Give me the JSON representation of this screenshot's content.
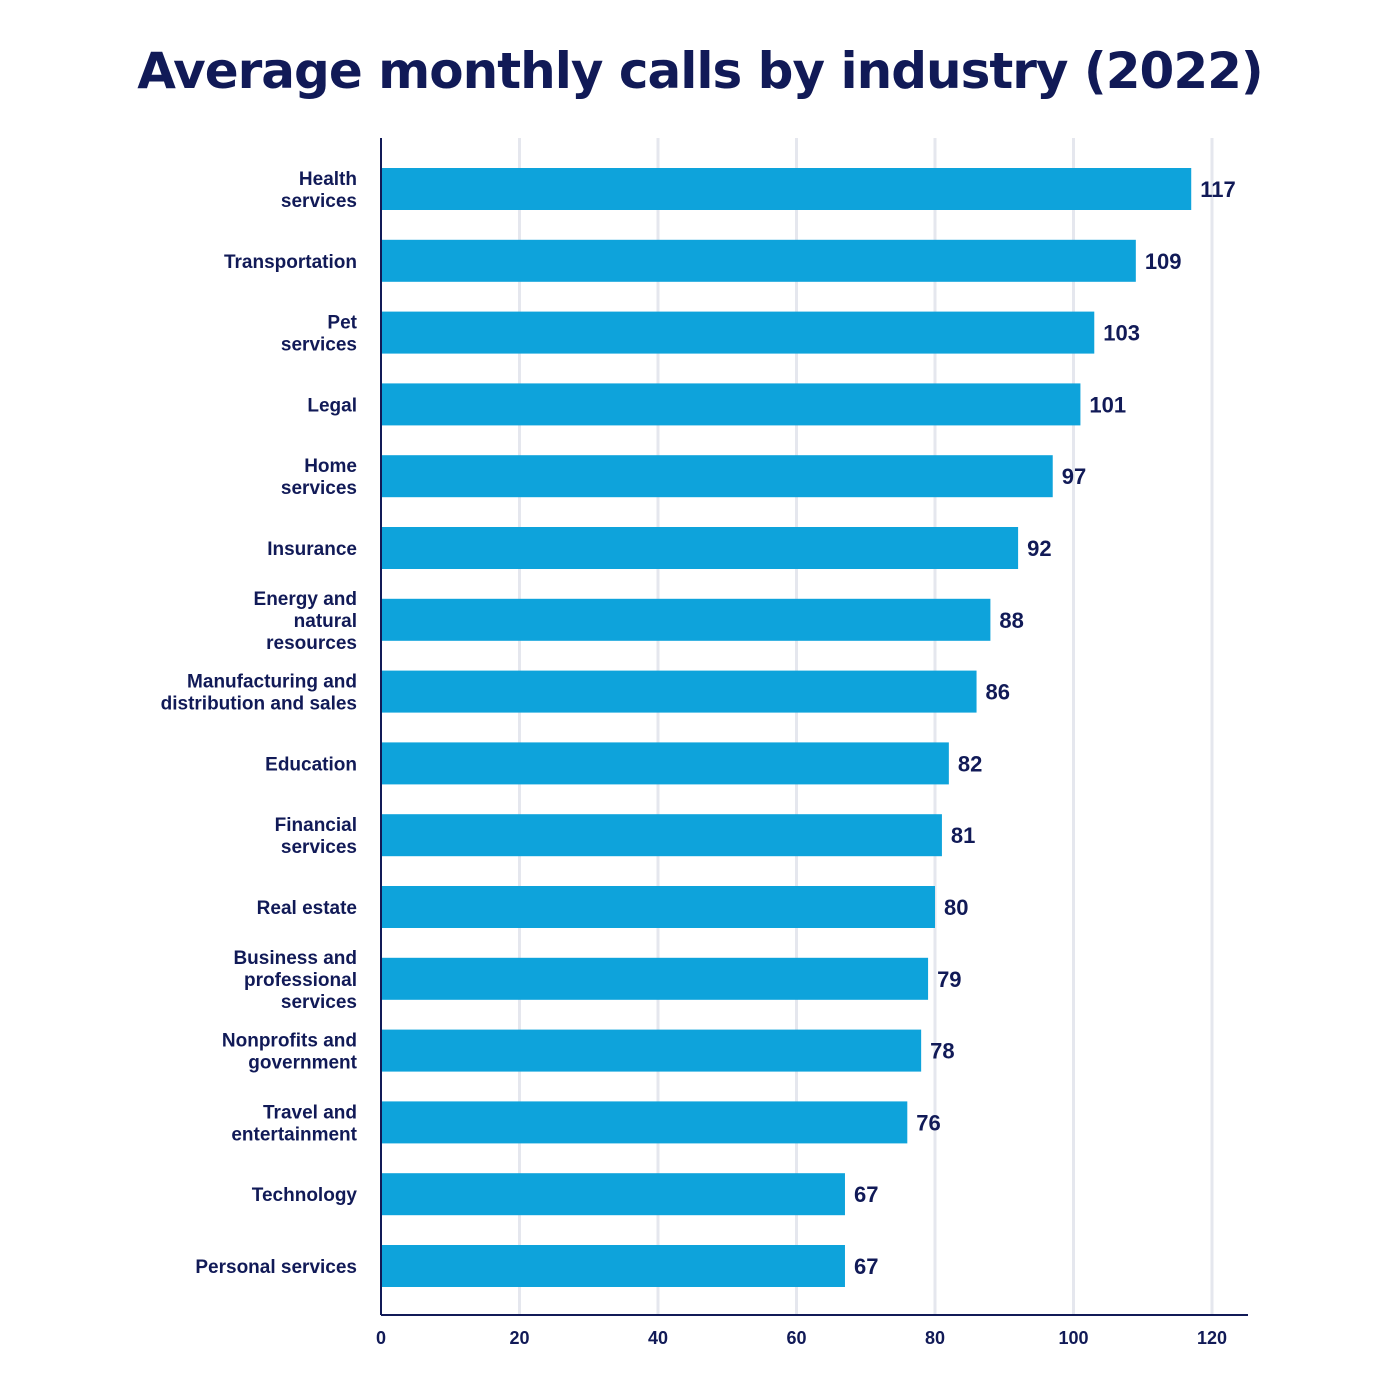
{
  "chart_data": {
    "type": "bar",
    "orientation": "horizontal",
    "title": "Average monthly calls by industry (2022)",
    "categories": [
      "Health\nservices",
      "Transportation",
      "Pet\nservices",
      "Legal",
      "Home\nservices",
      "Insurance",
      "Energy and\nnatural\nresources",
      "Manufacturing and\ndistribution and sales",
      "Education",
      "Financial\nservices",
      "Real estate",
      "Business and\nprofessional\nservices",
      "Nonprofits and\ngovernment",
      "Travel and\nentertainment",
      "Technology",
      "Personal services"
    ],
    "values": [
      117,
      109,
      103,
      101,
      97,
      92,
      88,
      86,
      82,
      81,
      80,
      79,
      78,
      76,
      67,
      67
    ],
    "xticks": [
      0,
      20,
      40,
      60,
      80,
      100,
      120
    ],
    "xlim": [
      0,
      125
    ],
    "grid": true,
    "colors": {
      "bar": "#0ea3db",
      "text": "#111a57",
      "grid": "#e5e7ee",
      "axis": "#111a57"
    }
  }
}
